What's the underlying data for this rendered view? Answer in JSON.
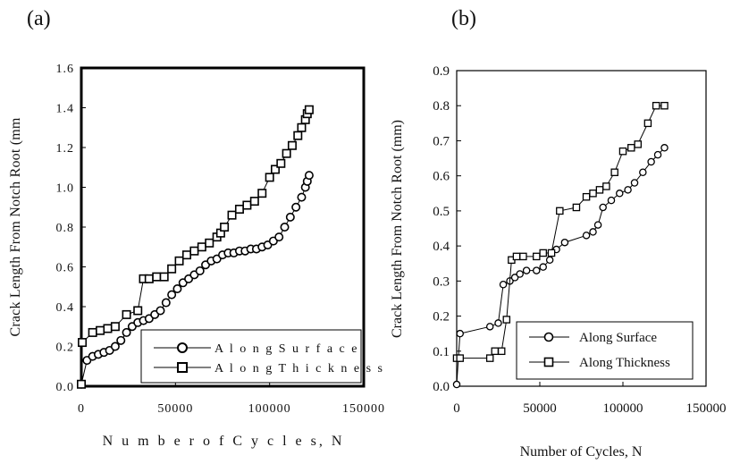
{
  "chart_data": [
    {
      "panel": "(a)",
      "type": "line",
      "xlabel": "N u m b e r  o f  C y c l e s,  N",
      "ylabel": "Crack Length From Notch Root (mm",
      "xlim": [
        0,
        150000
      ],
      "ylim": [
        0,
        1.6
      ],
      "xticks": [
        "0",
        "50000",
        "100000",
        "150000"
      ],
      "yticks": [
        "0.0",
        "0.2",
        "0.4",
        "0.6",
        "0.8",
        "1.0",
        "1.2",
        "1.4",
        "1.6"
      ],
      "grid": false,
      "legend_position": "bottom-right",
      "series": [
        {
          "name": "A l o n g  S u r f a c e",
          "marker": "circle",
          "x": [
            0,
            3000,
            6000,
            9000,
            12000,
            15000,
            18000,
            21000,
            24000,
            27000,
            30000,
            33000,
            36000,
            39000,
            42000,
            45000,
            48000,
            51000,
            54000,
            57000,
            60000,
            63000,
            66000,
            69000,
            72000,
            75000,
            78000,
            81000,
            84000,
            87000,
            90000,
            93000,
            96000,
            99000,
            102000,
            105000,
            108000,
            111000,
            114000,
            117000,
            119000,
            120000,
            121000
          ],
          "y": [
            0.01,
            0.13,
            0.15,
            0.16,
            0.17,
            0.18,
            0.2,
            0.23,
            0.27,
            0.3,
            0.32,
            0.33,
            0.34,
            0.36,
            0.38,
            0.42,
            0.46,
            0.49,
            0.52,
            0.54,
            0.56,
            0.58,
            0.61,
            0.63,
            0.64,
            0.66,
            0.67,
            0.67,
            0.68,
            0.68,
            0.69,
            0.69,
            0.7,
            0.71,
            0.73,
            0.75,
            0.8,
            0.85,
            0.9,
            0.95,
            1.0,
            1.03,
            1.06
          ]
        },
        {
          "name": "A l o n g  T h i c k n e s s",
          "marker": "square",
          "x": [
            0,
            500,
            6000,
            10000,
            14000,
            18000,
            24000,
            30000,
            33000,
            36000,
            40000,
            44000,
            48000,
            52000,
            56000,
            60000,
            64000,
            68000,
            72000,
            74000,
            76000,
            80000,
            84000,
            88000,
            92000,
            96000,
            100000,
            103000,
            106000,
            109000,
            112000,
            115000,
            117000,
            119000,
            120000,
            121000
          ],
          "y": [
            0.01,
            0.22,
            0.27,
            0.28,
            0.29,
            0.3,
            0.36,
            0.38,
            0.54,
            0.54,
            0.55,
            0.55,
            0.59,
            0.63,
            0.66,
            0.68,
            0.7,
            0.72,
            0.75,
            0.77,
            0.8,
            0.86,
            0.89,
            0.91,
            0.93,
            0.97,
            1.05,
            1.09,
            1.12,
            1.17,
            1.21,
            1.26,
            1.3,
            1.34,
            1.37,
            1.39
          ]
        }
      ]
    },
    {
      "panel": "(b)",
      "type": "line",
      "xlabel": "Number of Cycles, N",
      "ylabel": "Crack Length From Notch Root (mm)",
      "xlim": [
        0,
        150000
      ],
      "ylim": [
        0,
        0.9
      ],
      "xticks": [
        "0",
        "50000",
        "100000",
        "150000"
      ],
      "yticks": [
        "0.0",
        "0.1",
        "0.2",
        "0.3",
        "0.4",
        "0.5",
        "0.6",
        "0.7",
        "0.8",
        "0.9"
      ],
      "grid": false,
      "legend_position": "bottom-right",
      "series": [
        {
          "name": "Along Surface",
          "marker": "circle",
          "x": [
            0,
            2000,
            20000,
            25000,
            28000,
            32000,
            35000,
            38000,
            42000,
            48000,
            52000,
            56000,
            60000,
            65000,
            78000,
            82000,
            85000,
            88000,
            93000,
            98000,
            103000,
            107000,
            112000,
            117000,
            121000,
            125000
          ],
          "y": [
            0.005,
            0.15,
            0.17,
            0.18,
            0.29,
            0.3,
            0.31,
            0.32,
            0.33,
            0.33,
            0.34,
            0.36,
            0.39,
            0.41,
            0.43,
            0.44,
            0.46,
            0.51,
            0.53,
            0.55,
            0.56,
            0.58,
            0.61,
            0.64,
            0.66,
            0.68
          ]
        },
        {
          "name": "Along Thickness",
          "marker": "square",
          "x": [
            0,
            2000,
            20000,
            23000,
            27000,
            30000,
            33000,
            36000,
            40000,
            48000,
            52000,
            57000,
            62000,
            72000,
            78000,
            82000,
            86000,
            90000,
            95000,
            100000,
            105000,
            109000,
            115000,
            120000,
            125000
          ],
          "y": [
            0.08,
            0.08,
            0.08,
            0.1,
            0.1,
            0.19,
            0.36,
            0.37,
            0.37,
            0.37,
            0.38,
            0.38,
            0.5,
            0.51,
            0.54,
            0.55,
            0.56,
            0.57,
            0.61,
            0.67,
            0.68,
            0.69,
            0.75,
            0.8,
            0.8
          ]
        }
      ]
    }
  ]
}
